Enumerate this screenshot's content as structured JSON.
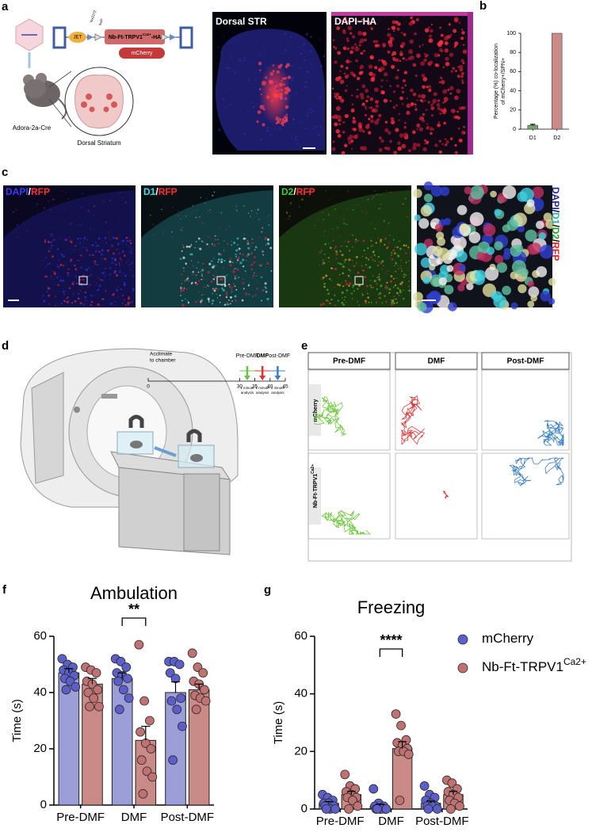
{
  "panel_a": {
    "letter": "a",
    "promoter": "JET",
    "sites": [
      "lox2272",
      "loxP"
    ],
    "construct": "Nb-Ft-TRPV1",
    "construct_sup": "Ca2+",
    "construct_suffix": "-HA",
    "reporter": "mCherry",
    "mouse_line": "Adora-2a-Cre",
    "region": "Dorsal Striatum",
    "images": [
      "Dorsal STR",
      "DAPI−HA"
    ]
  },
  "panel_c": {
    "letter": "c",
    "images": [
      [
        {
          "text": "DAPI",
          "color": "#3b3bff"
        },
        {
          "text": "/",
          "color": "#ffffff"
        },
        {
          "text": "RFP",
          "color": "#ff3030"
        }
      ],
      [
        {
          "text": "D1",
          "color": "#40e0e0"
        },
        {
          "text": "/",
          "color": "#ffffff"
        },
        {
          "text": "RFP",
          "color": "#ff3030"
        }
      ],
      [
        {
          "text": "D2",
          "color": "#40d040"
        },
        {
          "text": "/",
          "color": "#ffffff"
        },
        {
          "text": "RFP",
          "color": "#ff3030"
        }
      ]
    ],
    "side_label": [
      {
        "text": "DAPI",
        "color": "#2323a0"
      },
      {
        "text": "/",
        "color": "#000000"
      },
      {
        "text": "D1",
        "color": "#20b0b0"
      },
      {
        "text": "/",
        "color": "#000000"
      },
      {
        "text": "D2",
        "color": "#20a020"
      },
      {
        "text": "/",
        "color": "#000000"
      },
      {
        "text": "RFP",
        "color": "#e02020"
      }
    ]
  },
  "panel_d": {
    "letter": "d",
    "start_note": [
      "Acclimate",
      "to chamber"
    ],
    "phases": [
      "Pre-DMF",
      "DMF",
      "Post-DMF"
    ],
    "ticks": [
      0,
      30,
      35,
      40,
      45
    ],
    "note": [
      "1 minute",
      "analysis"
    ],
    "phase_colors": [
      "#6cc04a",
      "#e03030",
      "#3a7fc0"
    ]
  },
  "panel_e": {
    "letter": "e",
    "columns": [
      "Pre-DMF",
      "DMF",
      "Post-DMF"
    ],
    "rows": [
      {
        "label": "mCherry"
      },
      {
        "label": "Nb-Ft-TRPV1",
        "sup": "Ca2+"
      }
    ],
    "colors": [
      "#6cc83c",
      "#e03a3a",
      "#3a80c8"
    ]
  },
  "chart_data": [
    {
      "panel": "b",
      "type": "bar",
      "categories": [
        "D1",
        "D2"
      ],
      "values": [
        4,
        100
      ],
      "errors": [
        1,
        0
      ],
      "colors": [
        "#6ea86e",
        "#c98a88"
      ],
      "y_label": [
        "Percentage (%) co-localization",
        "of mCherry+/SPN+"
      ],
      "ylim": [
        0,
        100
      ],
      "yticks": [
        0,
        20,
        40,
        60,
        80,
        100
      ]
    },
    {
      "panel": "f",
      "type": "bar",
      "title": "Ambulation",
      "y_label": [
        "Time (s)"
      ],
      "categories": [
        "Pre-DMF",
        "DMF",
        "Post-DMF"
      ],
      "ylim": [
        0,
        60
      ],
      "yticks": [
        0,
        20,
        40,
        60
      ],
      "significance": {
        "label": "**",
        "category": "DMF"
      },
      "series": [
        {
          "name": "mCherry",
          "color": "#5b5fc7",
          "bar_color": "#9c9ed8",
          "values": [
            47,
            45,
            40
          ],
          "errors": [
            1.5,
            2,
            3.8
          ],
          "points": [
            [
              52,
              50,
              49,
              48,
              47,
              46,
              45,
              44,
              42,
              41
            ],
            [
              52,
              51,
              49,
              47,
              46,
              45,
              44,
              41,
              38,
              34
            ],
            [
              51,
              51,
              50,
              47,
              45,
              38,
              37,
              34,
              28,
              16
            ]
          ]
        },
        {
          "name": "Nb-Ft-TRPV1",
          "name_sup": "Ca2+",
          "color": "#c07272",
          "bar_color": "#c98a88",
          "values": [
            43,
            23,
            41
          ],
          "errors": [
            2,
            5,
            2
          ],
          "points": [
            [
              49,
              48,
              47,
              44,
              43,
              41,
              40,
              38,
              35,
              35
            ],
            [
              57,
              37,
              30,
              26,
              22,
              20,
              16,
              12,
              10,
              4
            ],
            [
              54,
              49,
              47,
              44,
              43,
              41,
              39,
              38,
              37,
              34
            ]
          ]
        }
      ]
    },
    {
      "panel": "g",
      "type": "bar",
      "title": "Freezing",
      "y_label": [
        "Time (s)"
      ],
      "categories": [
        "Pre-DMF",
        "DMF",
        "Post-DMF"
      ],
      "ylim": [
        0,
        60
      ],
      "yticks": [
        0,
        20,
        40,
        60
      ],
      "significance": {
        "label": "****",
        "category": "DMF"
      },
      "legend": "upper right",
      "series": [
        {
          "name": "mCherry",
          "color": "#5b5fc7",
          "bar_color": "#9c9ed8",
          "values": [
            2,
            1,
            2
          ],
          "errors": [
            0.6,
            0.7,
            0.8
          ],
          "points": [
            [
              5,
              4,
              3,
              2,
              2,
              1,
              1,
              0,
              0,
              0
            ],
            [
              7,
              2,
              1,
              1,
              0,
              0,
              0,
              0,
              0,
              0
            ],
            [
              8,
              5,
              4,
              3,
              2,
              1,
              1,
              1,
              0,
              0
            ]
          ]
        },
        {
          "name": "Nb-Ft-TRPV1",
          "name_sup": "Ca2+",
          "color": "#c07272",
          "bar_color": "#c98a88",
          "values": [
            5,
            21,
            5
          ],
          "errors": [
            1.1,
            2.4,
            1.1
          ],
          "points": [
            [
              12,
              8,
              7,
              6,
              5,
              4,
              4,
              3,
              1,
              0
            ],
            [
              33,
              29,
              24,
              23,
              22,
              21,
              20,
              20,
              19,
              3
            ],
            [
              10,
              9,
              7,
              6,
              5,
              4,
              3,
              2,
              1,
              0
            ]
          ]
        }
      ]
    }
  ]
}
